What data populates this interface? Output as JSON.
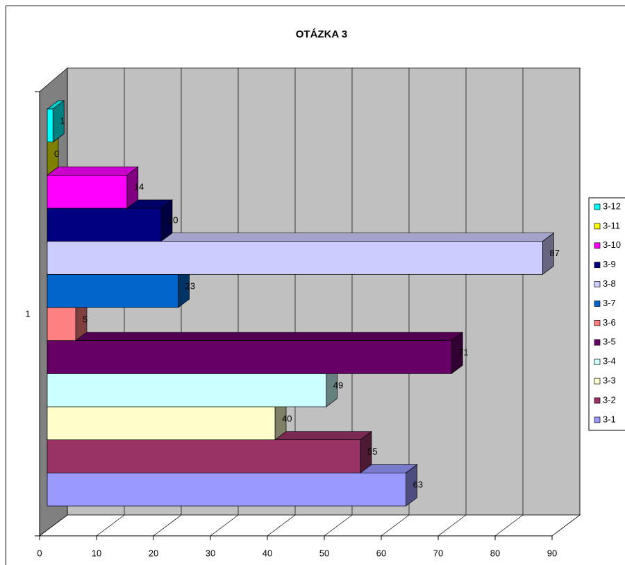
{
  "chart_data": {
    "type": "bar",
    "orientation": "horizontal",
    "title": "OTÁZKA 3",
    "categories": [
      "1"
    ],
    "series": [
      {
        "name": "3-1",
        "color": "#9999ff",
        "values": [
          63
        ]
      },
      {
        "name": "3-2",
        "color": "#993366",
        "values": [
          55
        ]
      },
      {
        "name": "3-3",
        "color": "#ffffcc",
        "values": [
          40
        ]
      },
      {
        "name": "3-4",
        "color": "#ccffff",
        "values": [
          49
        ]
      },
      {
        "name": "3-5",
        "color": "#660066",
        "values": [
          71
        ]
      },
      {
        "name": "3-6",
        "color": "#ff8080",
        "values": [
          5
        ]
      },
      {
        "name": "3-7",
        "color": "#0066cc",
        "values": [
          23
        ]
      },
      {
        "name": "3-8",
        "color": "#ccccff",
        "values": [
          87
        ]
      },
      {
        "name": "3-9",
        "color": "#000080",
        "values": [
          20
        ]
      },
      {
        "name": "3-10",
        "color": "#ff00ff",
        "values": [
          14
        ]
      },
      {
        "name": "3-11",
        "color": "#ffff00",
        "values": [
          0
        ]
      },
      {
        "name": "3-12",
        "color": "#00ffff",
        "values": [
          1
        ]
      }
    ],
    "xlim": [
      0,
      90
    ],
    "xticks": [
      0,
      10,
      20,
      30,
      40,
      50,
      60,
      70,
      80,
      90
    ],
    "grid": true,
    "legend": "right"
  }
}
